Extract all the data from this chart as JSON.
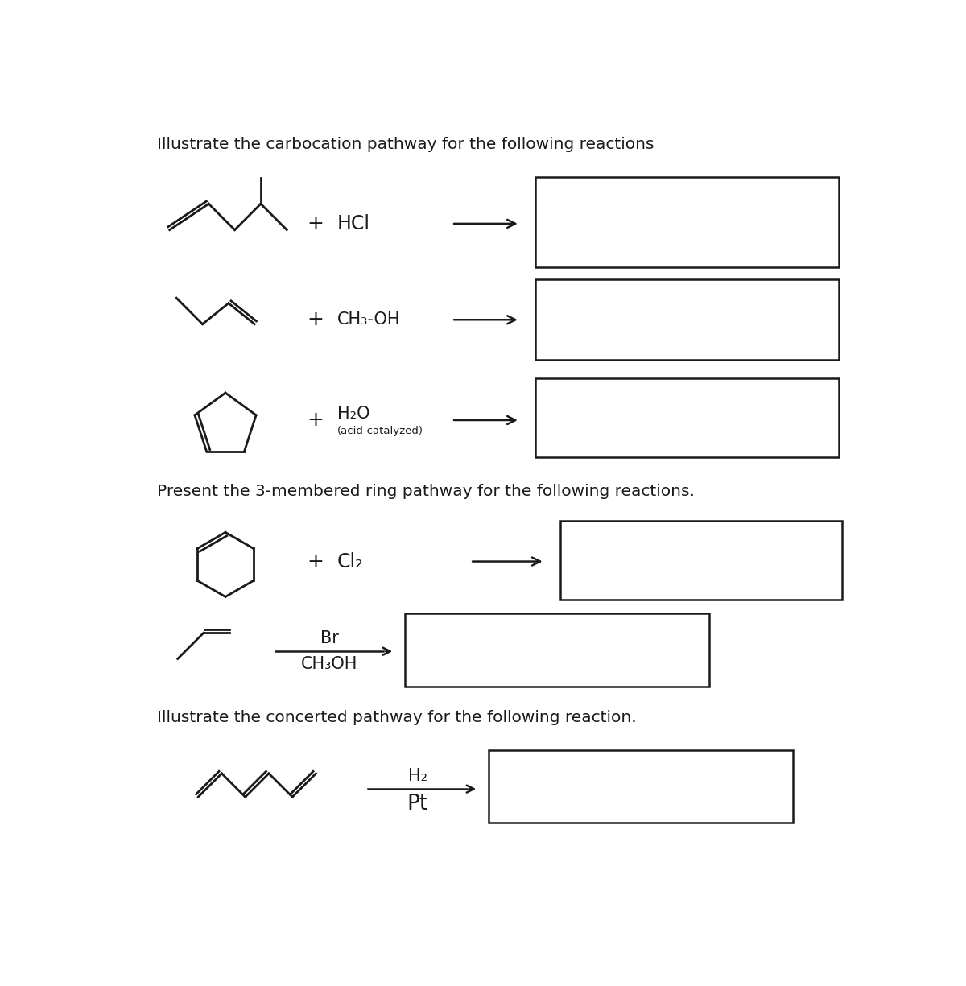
{
  "title1": "Illustrate the carbocation pathway for the following reactions",
  "title2": "Present the 3-membered ring pathway for the following reactions.",
  "title3": "Illustrate the concerted pathway for the following reaction.",
  "reagent1": "HCl",
  "reagent2": "CH₃-OH",
  "reagent3": "H₂O",
  "reagent3b": "(acid-catalyzed)",
  "reagent4": "Cl₂",
  "reagent5_top": "Br",
  "reagent5_bot": "CH₃OH",
  "reagent6_top": "H₂",
  "reagent6_bot": "Pt",
  "bg_color": "#ffffff",
  "line_color": "#1a1a1a",
  "fontsize_title": 14.5,
  "fontsize_reagent": 15,
  "fontsize_small": 9.5
}
